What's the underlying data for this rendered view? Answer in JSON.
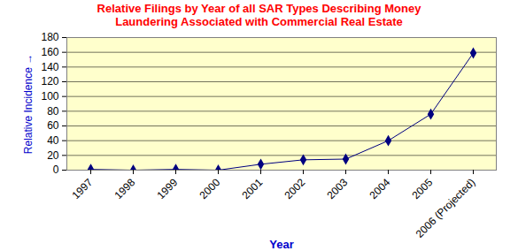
{
  "chart_data": {
    "type": "line",
    "title": "Relative Filings by Year of all SAR Types Describing Money Laundering Associated with Commercial Real Estate",
    "x_label": "Year",
    "y_label": "Relative Incidence",
    "categories": [
      "1997",
      "1998",
      "1999",
      "2000",
      "2001",
      "2002",
      "2003",
      "2004",
      "2005",
      "2006 (Projected)"
    ],
    "values": [
      1,
      0,
      1,
      0,
      8,
      14,
      15,
      40,
      76,
      159
    ],
    "color": "#000080",
    "marker": "diamond",
    "line_style": "solid",
    "ylim": [
      0,
      180
    ],
    "yticks": [
      0,
      20,
      40,
      60,
      80,
      100,
      120,
      140,
      160,
      180
    ],
    "grid": true
  }
}
